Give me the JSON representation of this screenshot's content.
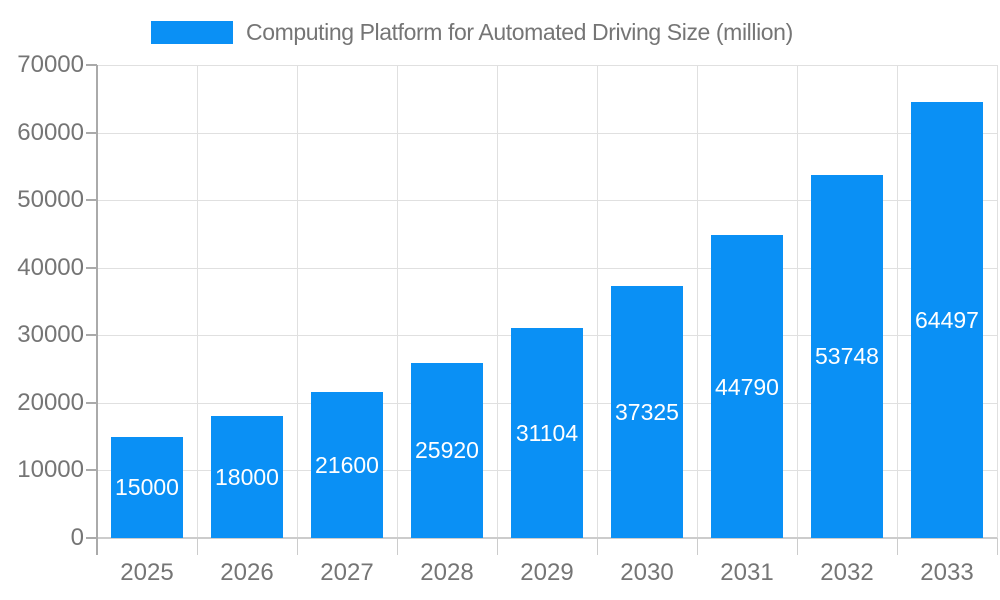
{
  "chart_data": {
    "type": "bar",
    "title": "Computing Platform for Automated Driving Size (million)",
    "categories": [
      "2025",
      "2026",
      "2027",
      "2028",
      "2029",
      "2030",
      "2031",
      "2032",
      "2033"
    ],
    "values": [
      15000,
      18000,
      21600,
      25920,
      31104,
      37325,
      44790,
      53748,
      64497
    ],
    "yticks": [
      "0",
      "10000",
      "20000",
      "30000",
      "40000",
      "50000",
      "60000",
      "70000"
    ],
    "ylim": [
      0,
      70000
    ],
    "ytick_interval": 10000,
    "xlabel": "",
    "ylabel": "",
    "grid": true,
    "legend_position": "top",
    "value_labels": "inside-center",
    "colors": {
      "bar": "#0a90f5",
      "bar_label_text": "#ffffff",
      "axis_text": "#757575",
      "grid_line": "#e0e0e0",
      "axis_line": "#aaaaaa",
      "baseline": "#cccccc"
    }
  }
}
